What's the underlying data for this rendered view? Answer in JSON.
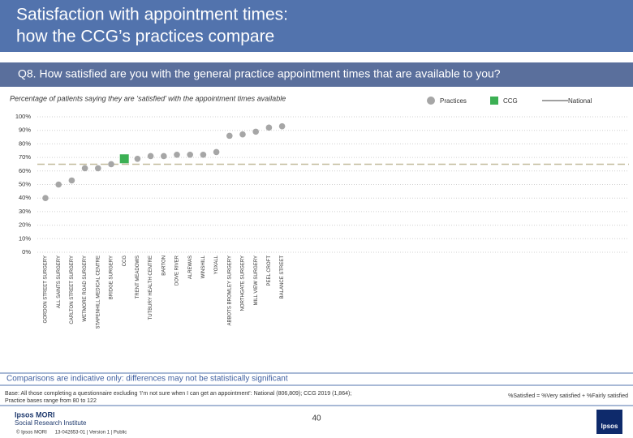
{
  "header": {
    "title_lines": [
      "Satisfaction with appointment times:",
      "how the CCG’s practices compare"
    ],
    "question": "Q8. How satisfied are you with the general practice appointment times that are available to you?"
  },
  "chart_data": {
    "type": "dot",
    "subtitle": "Percentage of patients saying they are ‘satisfied’ with the appointment times available",
    "categories": [
      "GORDON STREET SURGERY",
      "ALL SAINTS SURGERY",
      "CARLTON STREET SURGERY",
      "WETMORE ROAD SURGERY",
      "STAPENHILL MEDICAL CENTRE",
      "BRIDGE SURGERY",
      "CCG",
      "TRENT MEADOWS",
      "TUTBURY HEALTH CENTRE",
      "BARTON",
      "DOVE RIVER",
      "ALREWAS",
      "WINSHILL",
      "YOXALL",
      "ABBOTS BROMLEY SURGERY",
      "NORTHGATE SURGERY",
      "MILL VIEW SURGERY",
      "PEEL CROFT",
      "BALANCE STREET"
    ],
    "series": [
      {
        "name": "Practices",
        "color": "#a6a6a6",
        "marker": "circle",
        "values": [
          40,
          50,
          53,
          62,
          62,
          65,
          null,
          69,
          71,
          71,
          72,
          72,
          72,
          74,
          86,
          87,
          89,
          92,
          93
        ]
      },
      {
        "name": "CCG",
        "color": "#3cb054",
        "marker": "square",
        "values": [
          null,
          null,
          null,
          null,
          null,
          null,
          69,
          null,
          null,
          null,
          null,
          null,
          null,
          null,
          null,
          null,
          null,
          null,
          null
        ]
      }
    ],
    "reference": {
      "name": "National",
      "color": "#c2bb9c",
      "value": 65
    },
    "ylim": [
      0,
      100
    ],
    "yticks": [
      {
        "value": 0,
        "label": "0%"
      },
      {
        "value": 10,
        "label": "10%"
      },
      {
        "value": 20,
        "label": "20%"
      },
      {
        "value": 30,
        "label": "30%"
      },
      {
        "value": 40,
        "label": "40%"
      },
      {
        "value": 50,
        "label": "50%"
      },
      {
        "value": 60,
        "label": "60%"
      },
      {
        "value": 70,
        "label": "70%"
      },
      {
        "value": 80,
        "label": "80%"
      },
      {
        "value": 90,
        "label": "90%"
      },
      {
        "value": 100,
        "label": "100%"
      }
    ],
    "grid": true
  },
  "footer": {
    "caveat": "Comparisons are indicative only: differences may not be statistically significant",
    "base_lines": [
      "Base: All those completing a questionnaire excluding ‘I’m not sure when I can get an appointment’: National (806,809); CCG 2019 (1,864);",
      "Practice bases range from 80 to 122"
    ],
    "definition": "%Satisfied = %Very satisfied + %Fairly satisfied",
    "logo_lines": [
      "Ipsos MORI",
      "Social Research Institute"
    ],
    "page": "40",
    "copyright": "© Ipsos MORI      13-042653-01 | Version 1 | Public",
    "logo_mark": "Ipsos"
  }
}
